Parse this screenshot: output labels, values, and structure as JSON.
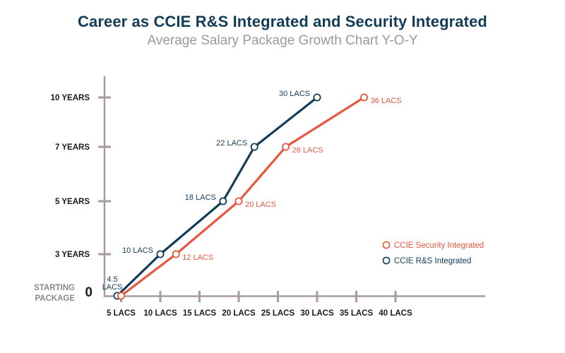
{
  "title": "Career as CCIE R&S Integrated and Security Integrated",
  "subtitle": "Average Salary Package Growth Chart Y-O-Y",
  "colors": {
    "rs": "#123c57",
    "security": "#e8563e",
    "axis": "#a89b9e",
    "title": "#123c57",
    "subtitle": "#9a9a9a"
  },
  "chart_data": {
    "type": "line",
    "title": "Career as CCIE R&S Integrated and Security Integrated",
    "subtitle": "Average Salary Package Growth Chart Y-O-Y",
    "x_ticks": [
      {
        "value": 5,
        "label": "5 LACS"
      },
      {
        "value": 10,
        "label": "10 LACS"
      },
      {
        "value": 15,
        "label": "15 LACS"
      },
      {
        "value": 20,
        "label": "20 LACS"
      },
      {
        "value": 25,
        "label": "25 LACS"
      },
      {
        "value": 30,
        "label": "30 LACS"
      },
      {
        "value": 35,
        "label": "35 LACS"
      },
      {
        "value": 40,
        "label": "40 LACS"
      }
    ],
    "y_ticks": [
      {
        "value": 3,
        "label": "3 YEARS"
      },
      {
        "value": 5,
        "label": "5 YEARS"
      },
      {
        "value": 7,
        "label": "7 YEARS"
      },
      {
        "value": 10,
        "label": "10 YEARS"
      }
    ],
    "y_origin_label": "0",
    "starting_package_label": [
      "STARTING",
      "PACKAGE"
    ],
    "series": [
      {
        "name": "CCIE R&S Integrated",
        "color": "#123c57",
        "points": [
          {
            "x": 4.5,
            "y": 0,
            "label": [
              "4.5",
              "LACS"
            ]
          },
          {
            "x": 10,
            "y": 3,
            "label": "10 LACS"
          },
          {
            "x": 18,
            "y": 5,
            "label": "18 LACS"
          },
          {
            "x": 22,
            "y": 7,
            "label": "22 LACS"
          },
          {
            "x": 30,
            "y": 10,
            "label": "30 LACS"
          }
        ]
      },
      {
        "name": "CCIE Security Integrated",
        "color": "#e8563e",
        "points": [
          {
            "x": 5,
            "y": 0,
            "label": ""
          },
          {
            "x": 12,
            "y": 3,
            "label": "12 LACS"
          },
          {
            "x": 20,
            "y": 5,
            "label": "20 LACS"
          },
          {
            "x": 26,
            "y": 7,
            "label": "26 LACS"
          },
          {
            "x": 36,
            "y": 10,
            "label": "36 LACS"
          }
        ]
      }
    ],
    "legend": [
      {
        "name": "CCIE Security Integrated",
        "color": "#e8563e"
      },
      {
        "name": "CCIE R&S Integrated",
        "color": "#123c57"
      }
    ],
    "legend_position": "right"
  }
}
